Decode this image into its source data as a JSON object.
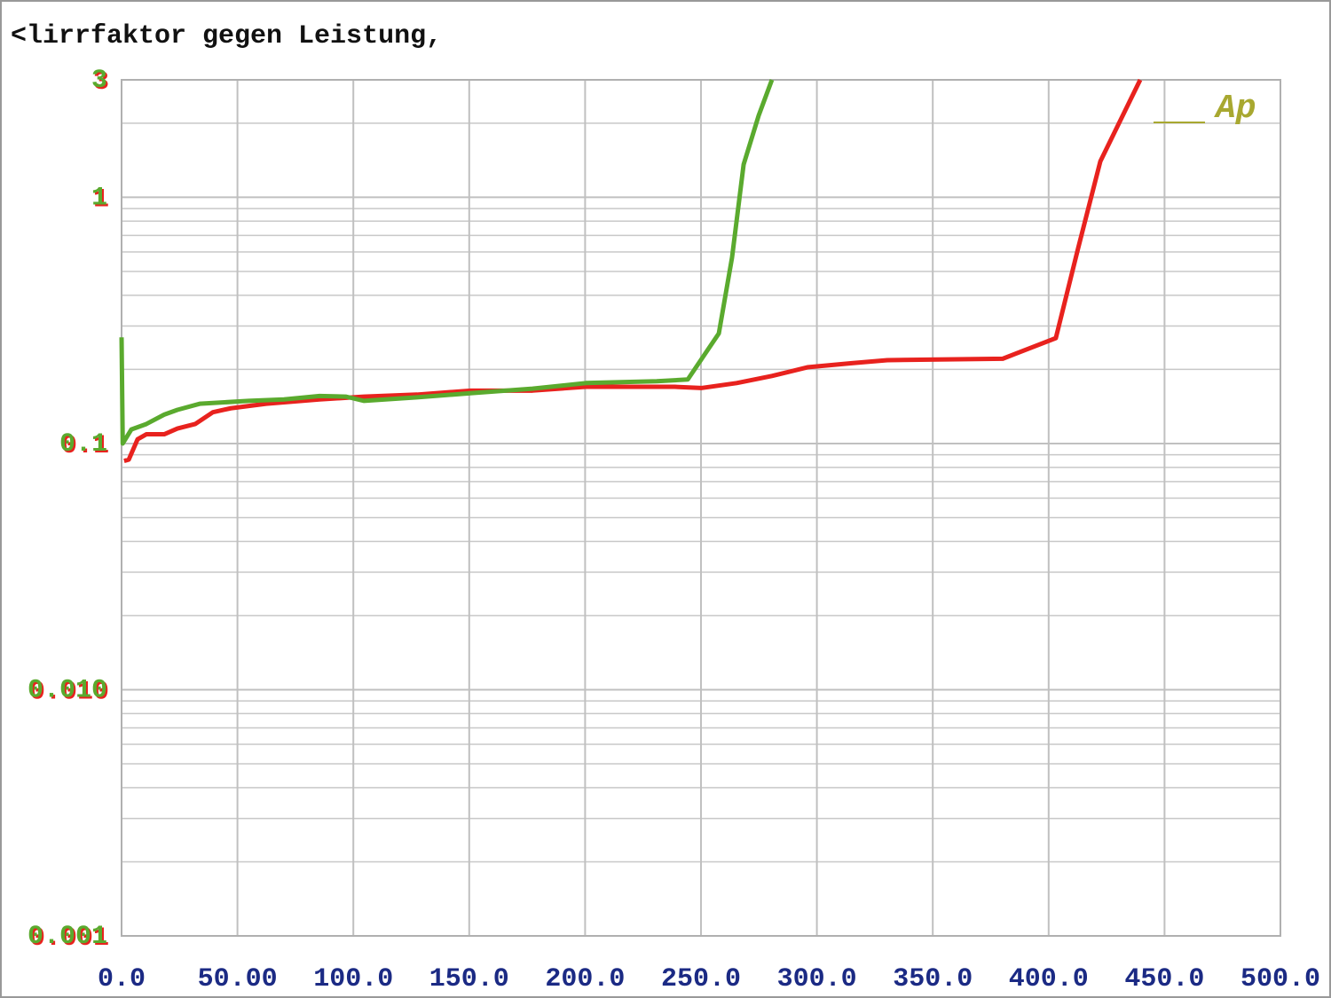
{
  "chart_data": {
    "type": "line",
    "title": "<lirrfaktor gegen Leistung,",
    "annotation": "Ap",
    "log_y": true,
    "grid": true,
    "minor_grid": true,
    "xlim": [
      0,
      500
    ],
    "ylim": [
      0.001,
      3
    ],
    "xticks": [
      {
        "value": 0,
        "label": "0.0"
      },
      {
        "value": 50,
        "label": "50.00"
      },
      {
        "value": 100,
        "label": "100.0"
      },
      {
        "value": 150,
        "label": "150.0"
      },
      {
        "value": 200,
        "label": "200.0"
      },
      {
        "value": 250,
        "label": "250.0"
      },
      {
        "value": 300,
        "label": "300.0"
      },
      {
        "value": 350,
        "label": "350.0"
      },
      {
        "value": 400,
        "label": "400.0"
      },
      {
        "value": 450,
        "label": "450.0"
      },
      {
        "value": 500,
        "label": "500.0"
      }
    ],
    "yticks": [
      0.001,
      {
        "value": 0.01,
        "label": "0.010"
      },
      0.1,
      1,
      3
    ],
    "series": [
      {
        "color": "#e8221e",
        "x": [
          1.1,
          3.1,
          6.9,
          10.7,
          18.4,
          24.1,
          31.8,
          39.4,
          47.1,
          62.4,
          85.4,
          104.5,
          127.5,
          150.5,
          177.3,
          200.3,
          238.6,
          250.1,
          265.4,
          280.6,
          295.9,
          315.1,
          330.4,
          380.2,
          403.1,
          412.7,
          422.3,
          439.5
        ],
        "values": [
          0.085,
          0.086,
          0.104,
          0.109,
          0.109,
          0.115,
          0.12,
          0.134,
          0.139,
          0.145,
          0.151,
          0.155,
          0.158,
          0.164,
          0.164,
          0.17,
          0.17,
          0.168,
          0.176,
          0.188,
          0.204,
          0.212,
          0.218,
          0.221,
          0.268,
          0.62,
          1.4,
          3
        ]
      },
      {
        "color": "#5aaa2e",
        "x": [
          0,
          0.5,
          4.2,
          10.7,
          18.4,
          24.1,
          33.7,
          54.8,
          70.1,
          85.4,
          96.9,
          104.5,
          127.5,
          150.5,
          177.3,
          200.3,
          230.9,
          244.3,
          257.7,
          263.4,
          268.4,
          274.9,
          280.6
        ],
        "values": [
          0.27,
          0.1,
          0.114,
          0.12,
          0.131,
          0.137,
          0.145,
          0.149,
          0.151,
          0.156,
          0.155,
          0.149,
          0.154,
          0.16,
          0.167,
          0.176,
          0.179,
          0.182,
          0.28,
          0.57,
          1.36,
          2.15,
          3
        ]
      }
    ]
  }
}
